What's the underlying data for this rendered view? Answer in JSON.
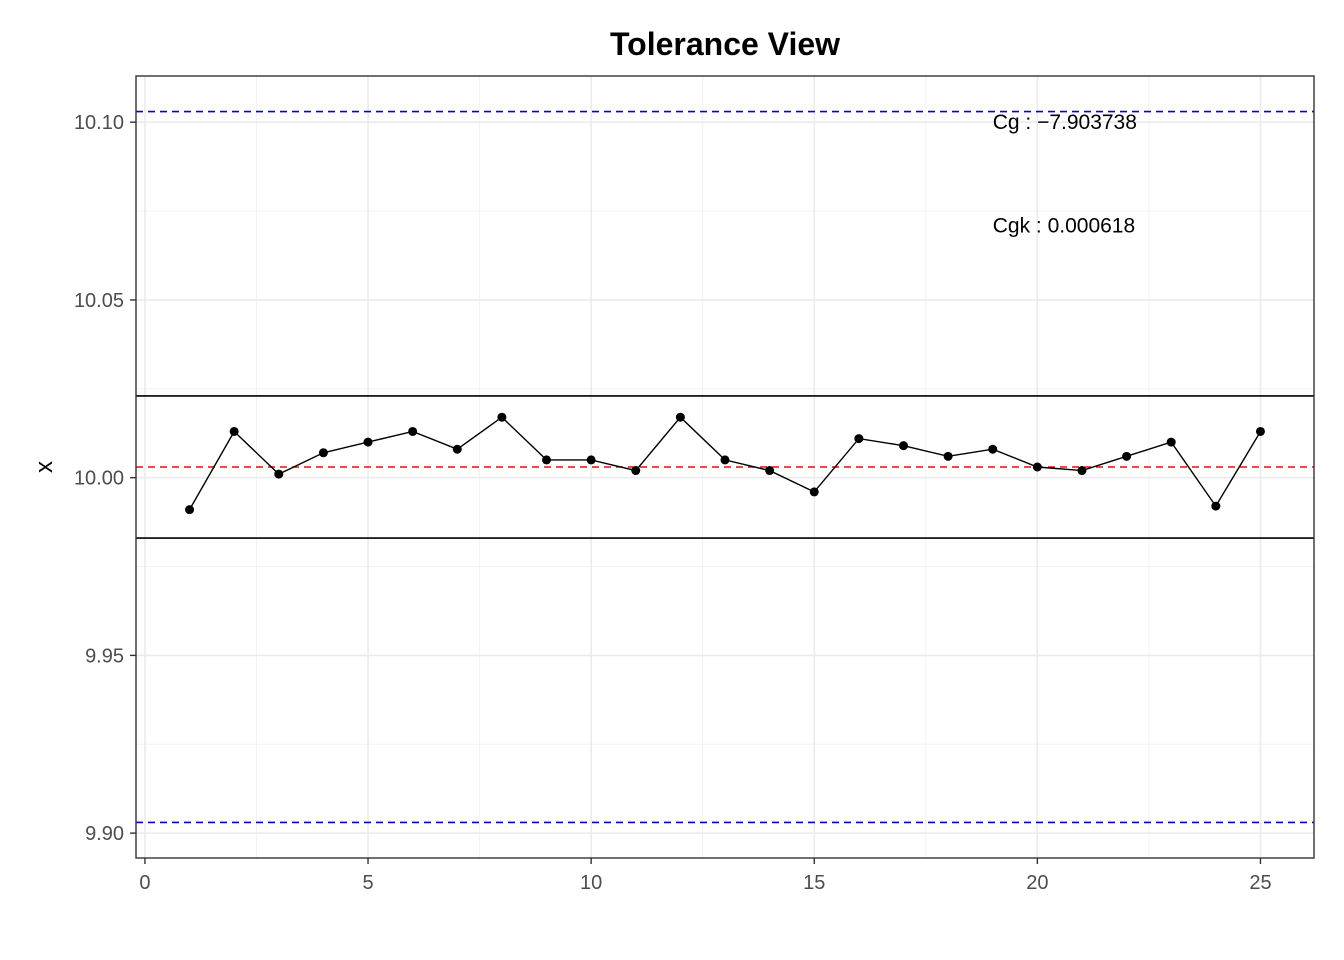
{
  "chart_data": {
    "type": "line",
    "title": "Tolerance View",
    "xlabel": "",
    "ylabel": "x",
    "xlim": [
      -0.2,
      26.2
    ],
    "ylim": [
      9.893,
      10.113
    ],
    "x_ticks": [
      0,
      5,
      10,
      15,
      20,
      25
    ],
    "x_tick_labels": [
      "0",
      "5",
      "10",
      "15",
      "20",
      "25"
    ],
    "y_ticks": [
      9.9,
      9.95,
      10.0,
      10.05,
      10.1
    ],
    "y_tick_labels": [
      "9.90",
      "9.95",
      "10.00",
      "10.05",
      "10.10"
    ],
    "grid": true,
    "series": [
      {
        "x": [
          1,
          2,
          3,
          4,
          5,
          6,
          7,
          8,
          9,
          10,
          11,
          12,
          13,
          14,
          15,
          16,
          17,
          18,
          19,
          20,
          21,
          22,
          23,
          24,
          25
        ],
        "values": [
          9.991,
          10.013,
          10.001,
          10.007,
          10.01,
          10.013,
          10.008,
          10.017,
          10.005,
          10.005,
          10.002,
          10.017,
          10.005,
          10.002,
          9.996,
          10.011,
          10.009,
          10.006,
          10.008,
          10.003,
          10.002,
          10.006,
          10.01,
          9.992,
          10.013
        ]
      }
    ],
    "reference_lines": [
      {
        "y": 10.103,
        "style": "dashed",
        "color": "#0000cc"
      },
      {
        "y": 9.903,
        "style": "dashed",
        "color": "#0000cc"
      },
      {
        "y": 10.003,
        "style": "dashed",
        "color": "#dd1111"
      },
      {
        "y": 10.023,
        "style": "solid",
        "color": "#000000"
      },
      {
        "y": 9.983,
        "style": "solid",
        "color": "#000000"
      }
    ],
    "annotations": [
      {
        "text": "Cg : −7.903738",
        "x": 19.0,
        "y": 10.1
      },
      {
        "text": "Cgk : 0.000618",
        "x": 19.0,
        "y": 10.071
      }
    ]
  }
}
